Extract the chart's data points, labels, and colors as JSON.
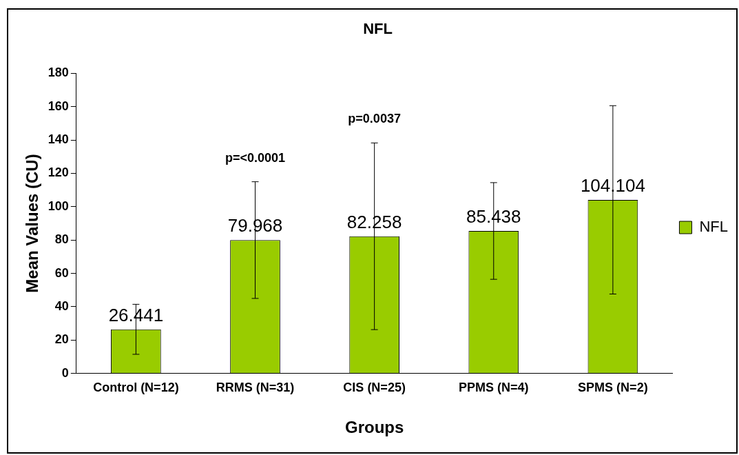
{
  "chart_data": {
    "type": "bar",
    "title": "NFL",
    "xlabel": "Groups",
    "ylabel": "Mean Values (CU)",
    "categories": [
      "Control (N=12)",
      "RRMS (N=31)",
      "CIS (N=25)",
      "PPMS (N=4)",
      "SPMS (N=2)"
    ],
    "series": [
      {
        "name": "NFL",
        "color": "#99cc00",
        "values": [
          26.441,
          79.968,
          82.258,
          85.438,
          104.104
        ],
        "errors": [
          15,
          35,
          56,
          29,
          56.5
        ]
      }
    ],
    "ylim": [
      0,
      180
    ],
    "yticks": [
      0,
      20,
      40,
      60,
      80,
      100,
      120,
      140,
      160,
      180
    ],
    "data_labels": true,
    "grid": false,
    "legend": "right",
    "annotations": [
      "p=<0.0001",
      "p=0.0037"
    ]
  }
}
